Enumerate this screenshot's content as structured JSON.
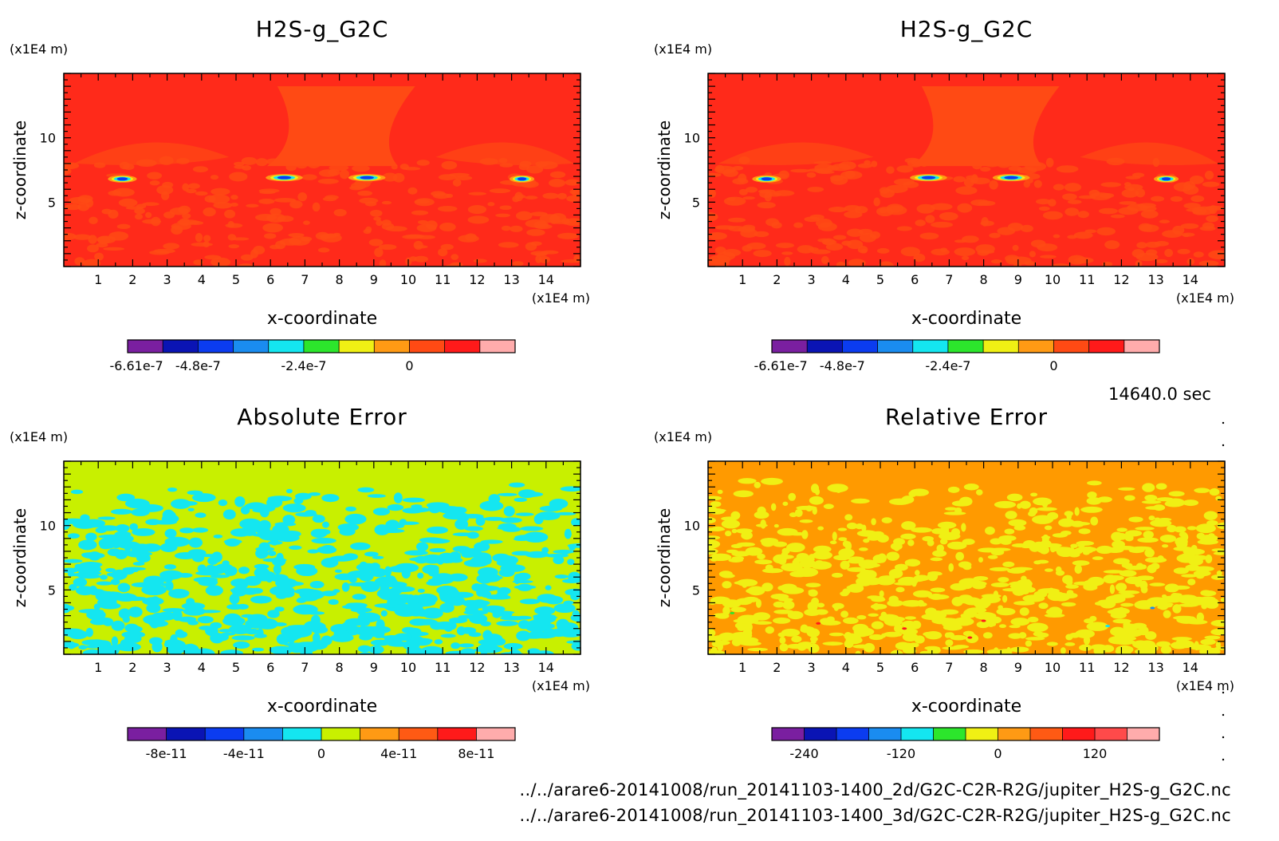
{
  "time_label": "14640.0 sec",
  "files": [
    "../../arare6-20141008/run_20141103-1400_2d/G2C-C2R-R2G/jupiter_H2S-g_G2C.nc",
    "../../arare6-20141008/run_20141103-1400_3d/G2C-C2R-R2G/jupiter_H2S-g_G2C.nc"
  ],
  "chart_data": [
    {
      "type": "heatmap",
      "title": "H2S-g_G2C",
      "xlabel": "x-coordinate",
      "ylabel": "z-coordinate",
      "x_unit": "(x1E4 m)",
      "y_unit": "(x1E4 m)",
      "xlim": [
        0,
        15
      ],
      "ylim": [
        0,
        15
      ],
      "x_ticks": [
        1,
        2,
        3,
        4,
        5,
        6,
        7,
        8,
        9,
        10,
        11,
        12,
        13,
        14
      ],
      "y_ticks": [
        5,
        10
      ],
      "base_color": "#ff2a1a",
      "colorbar": {
        "colors": [
          "#7a1fa0",
          "#0a14b4",
          "#0b3cf0",
          "#1a8cf0",
          "#14e6f0",
          "#2ce62c",
          "#f0f014",
          "#ff9a14",
          "#ff4a14",
          "#ff1a1a",
          "#ffacac"
        ],
        "tick_labels": [
          "-6.61e-7",
          "-4.8e-7",
          "-2.4e-7",
          "0"
        ]
      }
    },
    {
      "type": "heatmap",
      "title": "H2S-g_G2C",
      "xlabel": "x-coordinate",
      "ylabel": "z-coordinate",
      "x_unit": "(x1E4 m)",
      "y_unit": "(x1E4 m)",
      "xlim": [
        0,
        15
      ],
      "ylim": [
        0,
        15
      ],
      "x_ticks": [
        1,
        2,
        3,
        4,
        5,
        6,
        7,
        8,
        9,
        10,
        11,
        12,
        13,
        14
      ],
      "y_ticks": [
        5,
        10
      ],
      "base_color": "#ff2a1a",
      "colorbar": {
        "colors": [
          "#7a1fa0",
          "#0a14b4",
          "#0b3cf0",
          "#1a8cf0",
          "#14e6f0",
          "#2ce62c",
          "#f0f014",
          "#ff9a14",
          "#ff4a14",
          "#ff1a1a",
          "#ffacac"
        ],
        "tick_labels": [
          "-6.61e-7",
          "-4.8e-7",
          "-2.4e-7",
          "0"
        ]
      }
    },
    {
      "type": "heatmap",
      "title": "Absolute Error",
      "xlabel": "x-coordinate",
      "ylabel": "z-coordinate",
      "x_unit": "(x1E4 m)",
      "y_unit": "(x1E4 m)",
      "xlim": [
        0,
        15
      ],
      "ylim": [
        0,
        15
      ],
      "x_ticks": [
        1,
        2,
        3,
        4,
        5,
        6,
        7,
        8,
        9,
        10,
        11,
        12,
        13,
        14
      ],
      "y_ticks": [
        5,
        10
      ],
      "base_color": "#c8f000",
      "colorbar": {
        "colors": [
          "#7a1fa0",
          "#0a14b4",
          "#0b3cf0",
          "#1a8cf0",
          "#14e6f0",
          "#c8f000",
          "#ff9a14",
          "#ff5a14",
          "#ff1a1a",
          "#ffacac"
        ],
        "tick_labels": [
          "-8e-11",
          "-4e-11",
          "0",
          "4e-11",
          "8e-11"
        ]
      }
    },
    {
      "type": "heatmap",
      "title": "Relative Error",
      "xlabel": "x-coordinate",
      "ylabel": "z-coordinate",
      "x_unit": "(x1E4 m)",
      "y_unit": "(x1E4 m)",
      "xlim": [
        0,
        15
      ],
      "ylim": [
        0,
        15
      ],
      "x_ticks": [
        1,
        2,
        3,
        4,
        5,
        6,
        7,
        8,
        9,
        10,
        11,
        12,
        13,
        14
      ],
      "y_ticks": [
        5,
        10
      ],
      "base_color": "#ff9a00",
      "colorbar": {
        "colors": [
          "#7a1fa0",
          "#0a14b4",
          "#0b3cf0",
          "#1a8cf0",
          "#14e6f0",
          "#2ce62c",
          "#f0f014",
          "#ff9a14",
          "#ff5a14",
          "#ff1a1a",
          "#ff4a4a",
          "#ffacac"
        ],
        "tick_labels": [
          "-240",
          "-120",
          "0",
          "120"
        ]
      }
    }
  ]
}
